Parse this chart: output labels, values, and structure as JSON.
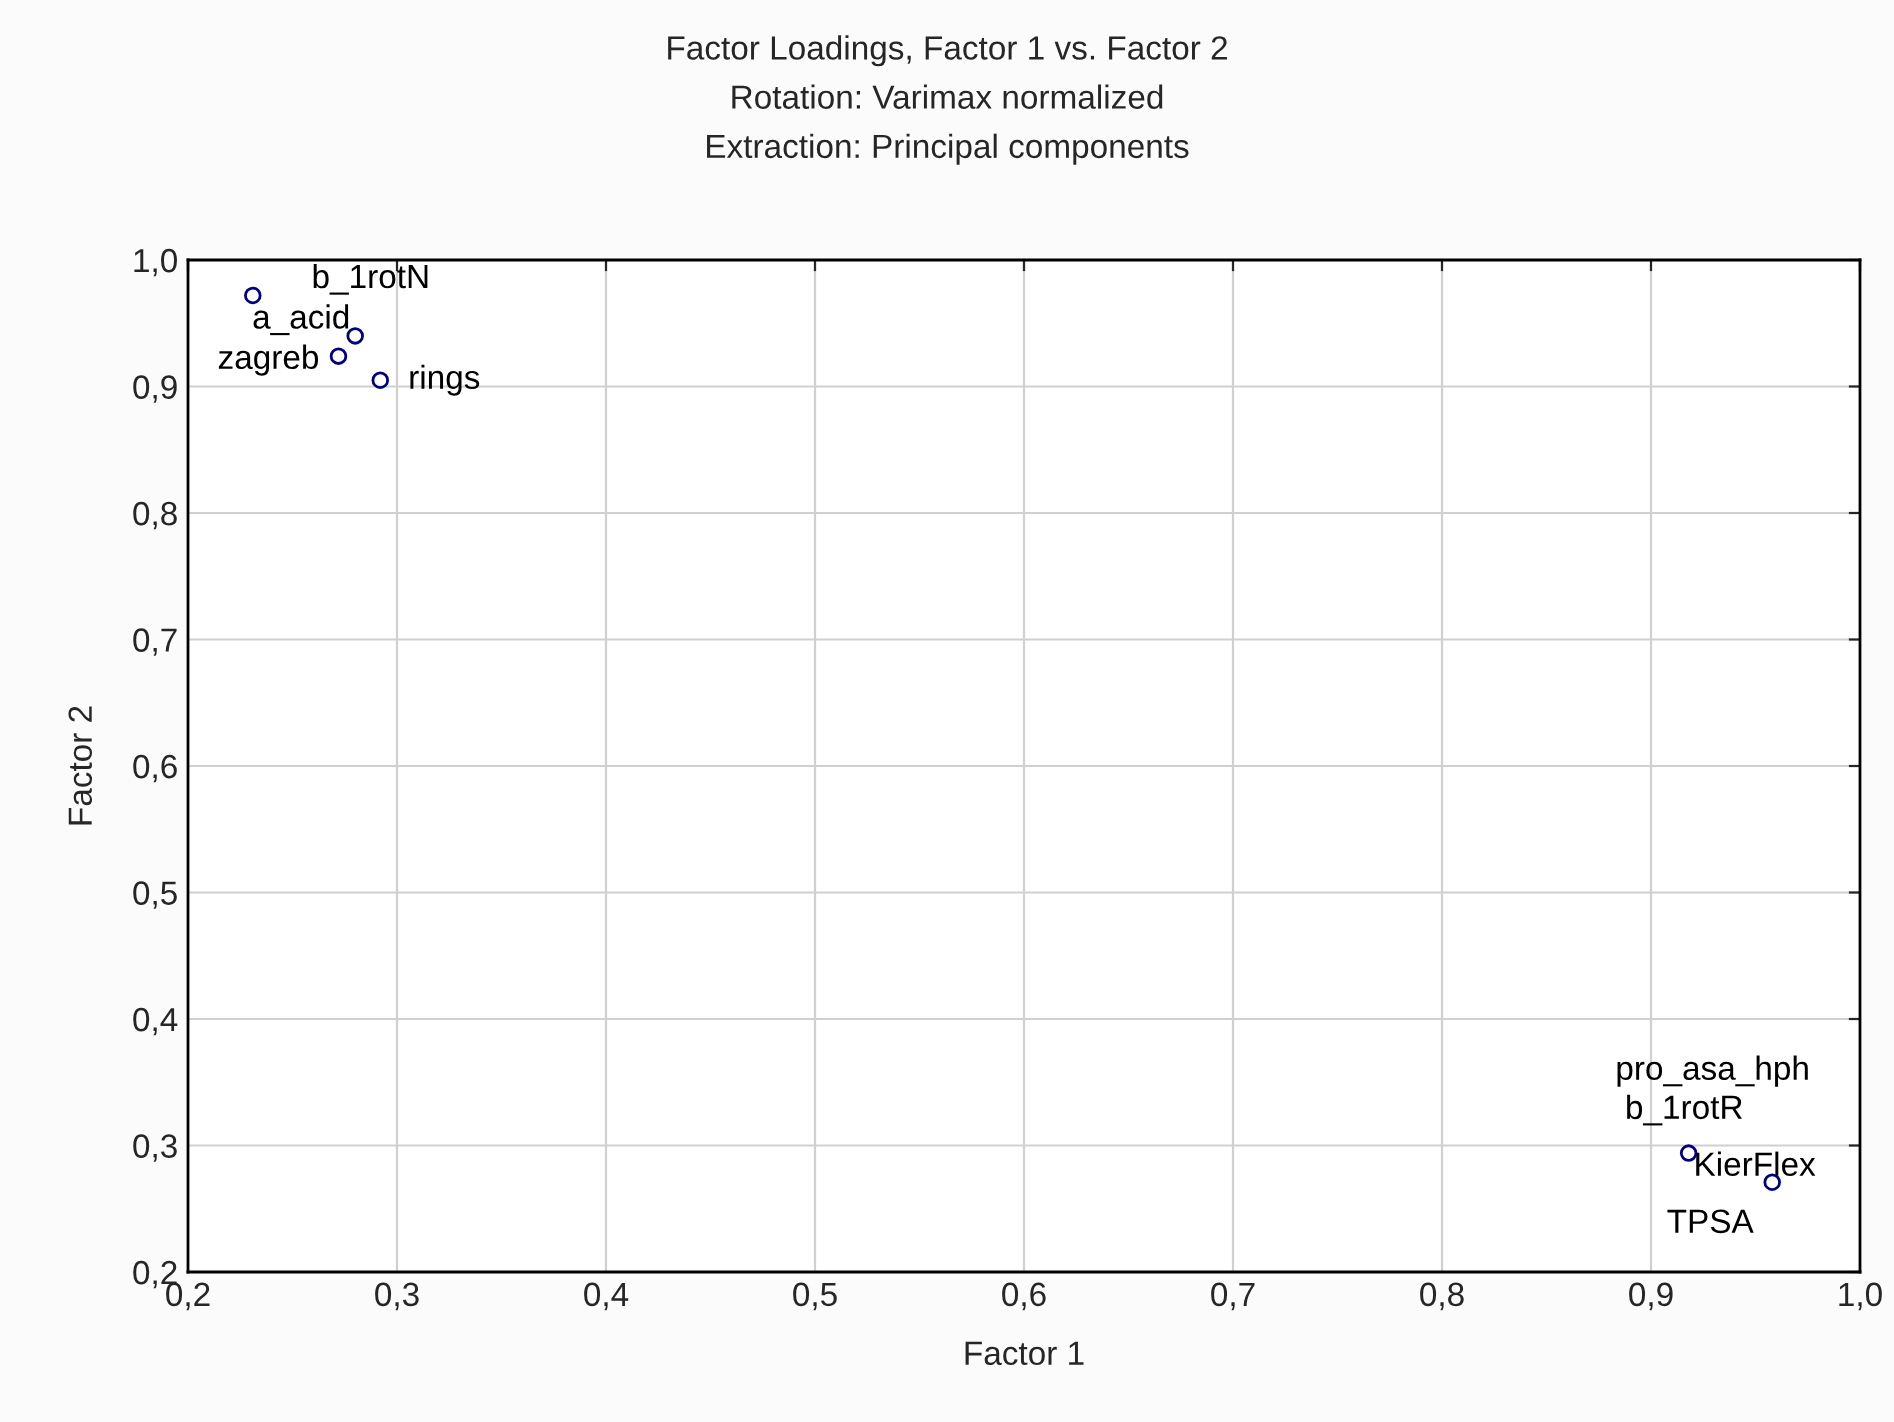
{
  "chart_data": {
    "type": "scatter",
    "title": "Factor Loadings, Factor 1 vs. Factor 2\nRotation: Varimax normalized\nExtraction: Principal components",
    "xlabel": "Factor 1",
    "ylabel": "Factor 2",
    "x": [
      0.231,
      0.28,
      0.272,
      0.292,
      null,
      null,
      0.918,
      0.958
    ],
    "series": [
      {
        "color": "#000080",
        "values": [
          0.972,
          0.94,
          0.924,
          0.905,
          null,
          null,
          0.294,
          0.271
        ]
      }
    ],
    "annotations": [
      {
        "text": "b_1rotN",
        "x": 0.231,
        "y": 0.972
      },
      {
        "text": "a_acid",
        "x": 0.28,
        "y": 0.94
      },
      {
        "text": "zagreb",
        "x": 0.272,
        "y": 0.924
      },
      {
        "text": "rings",
        "x": 0.292,
        "y": 0.905
      },
      {
        "text": "pro_asa_hph",
        "x": 0.918,
        "y": 0.294
      },
      {
        "text": "b_1rotR",
        "x": 0.958,
        "y": 0.271
      },
      {
        "text": "KierFlex",
        "x": 0.918,
        "y": 0.294
      },
      {
        "text": "TPSA",
        "x": 0.958,
        "y": 0.271
      }
    ],
    "xlim": [
      0.2,
      1.0
    ],
    "ylim": [
      0.2,
      1.0
    ],
    "xticks": [
      {
        "value": 0.2,
        "label": "0,2"
      },
      {
        "value": 0.3,
        "label": "0,3"
      },
      {
        "value": 0.4,
        "label": "0,4"
      },
      {
        "value": 0.5,
        "label": "0,5"
      },
      {
        "value": 0.6,
        "label": "0,6"
      },
      {
        "value": 0.7,
        "label": "0,7"
      },
      {
        "value": 0.8,
        "label": "0,8"
      },
      {
        "value": 0.9,
        "label": "0,9"
      },
      {
        "value": 1.0,
        "label": "1,0"
      }
    ],
    "yticks": [
      {
        "value": 0.2,
        "label": "0,2"
      },
      {
        "value": 0.3,
        "label": "0,3"
      },
      {
        "value": 0.4,
        "label": "0,4"
      },
      {
        "value": 0.5,
        "label": "0,5"
      },
      {
        "value": 0.6,
        "label": "0,6"
      },
      {
        "value": 0.7,
        "label": "0,7"
      },
      {
        "value": 0.8,
        "label": "0,8"
      },
      {
        "value": 0.9,
        "label": "0,9"
      },
      {
        "value": 1.0,
        "label": "1,0"
      }
    ],
    "grid": true,
    "marker": "circle"
  }
}
